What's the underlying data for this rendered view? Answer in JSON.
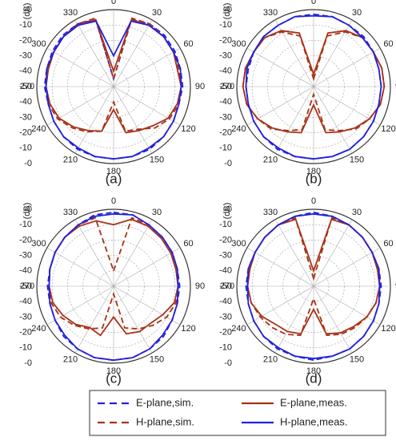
{
  "chart_data": [
    {
      "type": "polar",
      "subtitle": "(a)",
      "radial_label": "(dB)",
      "rlim": [
        -50,
        0
      ],
      "rticks": [
        {
          "value": 0,
          "label": "-0"
        },
        -10,
        -20,
        -30,
        -40,
        -50
      ],
      "theta": [
        0,
        15,
        30,
        45,
        60,
        75,
        90,
        105,
        120,
        135,
        150,
        165,
        180,
        195,
        210,
        225,
        240,
        255,
        270,
        285,
        300,
        315,
        330,
        345
      ],
      "thetaticks": [
        0,
        30,
        60,
        90,
        120,
        150,
        180,
        210,
        240,
        270,
        300,
        330
      ],
      "series": [
        {
          "values": [
            -45,
            -5,
            -3,
            -3,
            -4,
            -5,
            -5,
            -6,
            -5,
            -4,
            -3,
            -3,
            -3,
            -3,
            -3,
            -4,
            -5,
            -6,
            -5,
            -5,
            -4,
            -3,
            -3,
            -5
          ]
        },
        {
          "values": [
            -40,
            -5,
            -4,
            -4,
            -5,
            -7,
            -6,
            -7,
            -9,
            -14,
            -17,
            -19,
            -35,
            -20,
            -17,
            -13,
            -9,
            -7,
            -6,
            -6,
            -5,
            -4,
            -4,
            -5
          ]
        },
        {
          "values": [
            -45,
            -4,
            -3,
            -4,
            -5,
            -6,
            -6,
            -6,
            -8,
            -12,
            -18,
            -20,
            -40,
            -20,
            -16,
            -12,
            -8,
            -6,
            -6,
            -6,
            -5,
            -4,
            -3,
            -4
          ]
        },
        {
          "values": [
            -30,
            -6,
            -4,
            -4,
            -5,
            -5,
            -6,
            -6,
            -5,
            -4,
            -4,
            -3,
            -3,
            -3,
            -4,
            -4,
            -5,
            -6,
            -6,
            -5,
            -5,
            -4,
            -4,
            -6
          ]
        }
      ]
    },
    {
      "type": "polar",
      "subtitle": "(b)",
      "radial_label": "(dB)",
      "rlim": [
        -50,
        0
      ],
      "rticks": [
        {
          "value": 0,
          "label": "-0"
        },
        -10,
        -20,
        -30,
        -40,
        -50
      ],
      "theta": [
        0,
        15,
        30,
        45,
        60,
        75,
        90,
        105,
        120,
        135,
        150,
        165,
        180,
        195,
        210,
        225,
        240,
        255,
        270,
        285,
        300,
        315,
        330,
        345
      ],
      "thetaticks": [
        0,
        30,
        60,
        90,
        120,
        150,
        180,
        210,
        240,
        270,
        300,
        330
      ],
      "series": [
        {
          "values": [
            -3,
            -3,
            -4,
            -4,
            -5,
            -6,
            -6,
            -6,
            -5,
            -4,
            -3,
            -3,
            -3,
            -3,
            -3,
            -4,
            -5,
            -6,
            -6,
            -6,
            -5,
            -4,
            -4,
            -3
          ]
        },
        {
          "values": [
            -42,
            -14,
            -8,
            -5,
            -5,
            -4,
            -4,
            -5,
            -8,
            -12,
            -16,
            -19,
            -38,
            -19,
            -16,
            -12,
            -8,
            -5,
            -4,
            -4,
            -5,
            -5,
            -8,
            -14
          ]
        },
        {
          "values": [
            -45,
            -16,
            -9,
            -5,
            -5,
            -4,
            -4,
            -5,
            -8,
            -11,
            -17,
            -21,
            -45,
            -21,
            -17,
            -11,
            -8,
            -5,
            -4,
            -4,
            -5,
            -5,
            -9,
            -16
          ]
        },
        {
          "values": [
            -4,
            -3,
            -4,
            -5,
            -5,
            -6,
            -6,
            -6,
            -5,
            -4,
            -3,
            -3,
            -3,
            -3,
            -4,
            -4,
            -5,
            -6,
            -6,
            -5,
            -5,
            -4,
            -4,
            -3
          ]
        }
      ]
    },
    {
      "type": "polar",
      "subtitle": "(c)",
      "radial_label": "(dB)",
      "rlim": [
        -50,
        0
      ],
      "rticks": [
        {
          "value": 0,
          "label": "-0"
        },
        -10,
        -20,
        -30,
        -40,
        -50
      ],
      "theta": [
        0,
        15,
        30,
        45,
        60,
        75,
        90,
        105,
        120,
        135,
        150,
        165,
        180,
        195,
        210,
        225,
        240,
        255,
        270,
        285,
        300,
        315,
        330,
        345
      ],
      "thetaticks": [
        0,
        30,
        60,
        90,
        120,
        150,
        180,
        210,
        240,
        270,
        300,
        330
      ],
      "series": [
        {
          "values": [
            -2,
            -2,
            -4,
            -5,
            -6,
            -7,
            -7,
            -7,
            -6,
            -4,
            -3,
            -2,
            -2,
            -2,
            -3,
            -4,
            -6,
            -7,
            -7,
            -7,
            -6,
            -5,
            -4,
            -2
          ]
        },
        {
          "values": [
            -10,
            -5,
            -5,
            -6,
            -7,
            -8,
            -8,
            -9,
            -13,
            -16,
            -16,
            -18,
            -30,
            -17,
            -19,
            -15,
            -12,
            -9,
            -8,
            -7,
            -6,
            -5,
            -5,
            -6
          ]
        },
        {
          "values": [
            -40,
            -4,
            -4,
            -5,
            -6,
            -7,
            -8,
            -8,
            -10,
            -14,
            -18,
            -22,
            -45,
            -22,
            -18,
            -14,
            -10,
            -8,
            -8,
            -7,
            -6,
            -5,
            -4,
            -4
          ]
        },
        {
          "values": [
            -3,
            -2,
            -4,
            -5,
            -6,
            -7,
            -8,
            -7,
            -6,
            -5,
            -3,
            -2,
            -2,
            -2,
            -3,
            -5,
            -6,
            -7,
            -8,
            -7,
            -6,
            -5,
            -4,
            -3
          ]
        }
      ]
    },
    {
      "type": "polar",
      "subtitle": "(d)",
      "radial_label": "(dB)",
      "rlim": [
        -50,
        0
      ],
      "rticks": [
        {
          "value": 0,
          "label": "-0"
        },
        -10,
        -20,
        -30,
        -40,
        -50
      ],
      "theta": [
        0,
        15,
        30,
        45,
        60,
        75,
        90,
        105,
        120,
        135,
        150,
        165,
        180,
        195,
        210,
        225,
        240,
        255,
        270,
        285,
        300,
        315,
        330,
        345
      ],
      "thetaticks": [
        0,
        30,
        60,
        90,
        120,
        150,
        180,
        210,
        240,
        270,
        300,
        330
      ],
      "series": [
        {
          "values": [
            -2,
            -3,
            -4,
            -5,
            -6,
            -6,
            -6,
            -6,
            -5,
            -4,
            -3,
            -3,
            -2,
            -3,
            -3,
            -4,
            -5,
            -6,
            -6,
            -6,
            -6,
            -5,
            -4,
            -3
          ]
        },
        {
          "values": [
            -40,
            -5,
            -4,
            -5,
            -6,
            -7,
            -7,
            -8,
            -10,
            -13,
            -15,
            -18,
            -35,
            -18,
            -16,
            -15,
            -11,
            -8,
            -7,
            -7,
            -6,
            -5,
            -4,
            -5
          ]
        },
        {
          "values": [
            -45,
            -4,
            -4,
            -5,
            -6,
            -7,
            -7,
            -8,
            -10,
            -12,
            -14,
            -17,
            -42,
            -17,
            -14,
            -12,
            -10,
            -8,
            -7,
            -7,
            -6,
            -5,
            -4,
            -4
          ]
        },
        {
          "values": [
            -3,
            -3,
            -4,
            -5,
            -6,
            -6,
            -7,
            -6,
            -5,
            -4,
            -3,
            -3,
            -3,
            -3,
            -4,
            -4,
            -5,
            -6,
            -7,
            -6,
            -6,
            -5,
            -4,
            -3
          ]
        }
      ]
    }
  ],
  "legend": [
    {
      "name": "E-plane,sim.",
      "color": "#2222dd",
      "dash": true
    },
    {
      "name": "E-plane,meas.",
      "color": "#a83218",
      "dash": false
    },
    {
      "name": "H-plane,sim.",
      "color": "#a83218",
      "dash": true
    },
    {
      "name": "H-plane,meas.",
      "color": "#2222dd",
      "dash": false
    }
  ]
}
